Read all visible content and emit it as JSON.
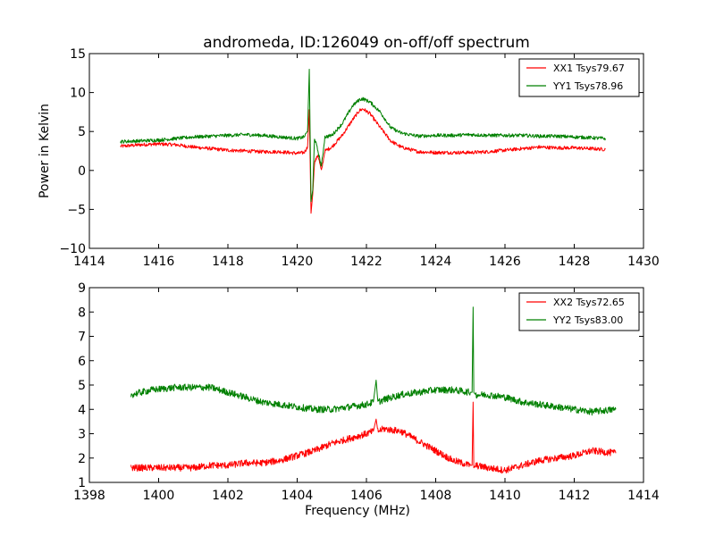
{
  "figure_title": "andromeda, ID:126049 on-off/off spectrum",
  "chart_data": [
    {
      "type": "line",
      "title": "andromeda, ID:126049 on-off/off spectrum",
      "xlabel": "",
      "ylabel": "Power in Kelvin",
      "xlim": [
        1414,
        1430
      ],
      "ylim": [
        -10,
        15
      ],
      "xticks": [
        1414,
        1416,
        1418,
        1420,
        1422,
        1424,
        1426,
        1428,
        1430
      ],
      "yticks": [
        -10,
        -5,
        0,
        5,
        10,
        15
      ],
      "ytick_labels": [
        "−10",
        "−5",
        "0",
        "5",
        "10",
        "15"
      ],
      "grid": false,
      "legend_position": "top-right",
      "series": [
        {
          "name": "XX1 Tsys79.67",
          "color": "#ff0000",
          "x": [
            1414.9,
            1415.5,
            1416.0,
            1416.5,
            1417.0,
            1417.5,
            1418.0,
            1418.5,
            1419.0,
            1419.5,
            1420.0,
            1420.2,
            1420.3,
            1420.35,
            1420.4,
            1420.45,
            1420.5,
            1420.6,
            1420.7,
            1420.8,
            1421.0,
            1421.3,
            1421.6,
            1421.8,
            1421.9,
            1422.1,
            1422.4,
            1422.7,
            1423.0,
            1423.5,
            1424.0,
            1424.5,
            1425.0,
            1425.5,
            1426.0,
            1426.5,
            1427.0,
            1427.5,
            1428.0,
            1428.5,
            1428.9
          ],
          "y": [
            3.1,
            3.3,
            3.4,
            3.3,
            3.0,
            2.8,
            2.6,
            2.5,
            2.4,
            2.4,
            2.2,
            2.3,
            3.0,
            7.8,
            -5.5,
            -3.0,
            1.0,
            2.0,
            -0.1,
            2.5,
            3.0,
            4.5,
            6.5,
            7.7,
            7.9,
            7.3,
            5.5,
            3.8,
            3.0,
            2.4,
            2.3,
            2.3,
            2.3,
            2.4,
            2.6,
            2.8,
            3.0,
            2.9,
            2.9,
            2.8,
            2.7
          ]
        },
        {
          "name": "YY1 Tsys78.96",
          "color": "#008000",
          "x": [
            1414.9,
            1415.5,
            1416.0,
            1416.5,
            1417.0,
            1417.5,
            1418.0,
            1418.5,
            1419.0,
            1419.5,
            1420.0,
            1420.2,
            1420.3,
            1420.35,
            1420.4,
            1420.45,
            1420.5,
            1420.6,
            1420.7,
            1420.8,
            1421.0,
            1421.3,
            1421.6,
            1421.8,
            1421.9,
            1422.1,
            1422.4,
            1422.7,
            1423.0,
            1423.5,
            1424.0,
            1424.5,
            1425.0,
            1425.5,
            1426.0,
            1426.5,
            1427.0,
            1427.5,
            1428.0,
            1428.5,
            1428.9
          ],
          "y": [
            3.7,
            3.8,
            3.9,
            4.1,
            4.3,
            4.4,
            4.5,
            4.6,
            4.5,
            4.3,
            4.1,
            4.3,
            5.0,
            13.0,
            -4.0,
            -2.5,
            4.2,
            2.5,
            0.5,
            4.3,
            4.5,
            6.0,
            8.3,
            9.1,
            9.2,
            8.8,
            7.5,
            5.5,
            4.8,
            4.4,
            4.5,
            4.5,
            4.6,
            4.5,
            4.5,
            4.5,
            4.4,
            4.4,
            4.3,
            4.2,
            4.1
          ]
        }
      ]
    },
    {
      "type": "line",
      "title": "",
      "xlabel": "Frequency (MHz)",
      "ylabel": "",
      "xlim": [
        1398,
        1414
      ],
      "ylim": [
        1,
        9
      ],
      "xticks": [
        1398,
        1400,
        1402,
        1404,
        1406,
        1408,
        1410,
        1412,
        1414
      ],
      "yticks": [
        1,
        2,
        3,
        4,
        5,
        6,
        7,
        8,
        9
      ],
      "ytick_labels": [
        "1",
        "2",
        "3",
        "4",
        "5",
        "6",
        "7",
        "8",
        "9"
      ],
      "grid": false,
      "legend_position": "top-right",
      "series": [
        {
          "name": "XX2 Tsys72.65",
          "color": "#ff0000",
          "x": [
            1399.2,
            1399.8,
            1400.5,
            1401.0,
            1401.5,
            1402.0,
            1402.5,
            1403.0,
            1403.5,
            1404.0,
            1404.5,
            1405.0,
            1405.5,
            1406.0,
            1406.2,
            1406.28,
            1406.33,
            1406.5,
            1407.0,
            1407.5,
            1408.0,
            1408.5,
            1409.0,
            1409.05,
            1409.08,
            1409.1,
            1409.15,
            1409.5,
            1410.0,
            1410.5,
            1411.0,
            1411.5,
            1412.0,
            1412.5,
            1413.2
          ],
          "y": [
            1.6,
            1.6,
            1.6,
            1.6,
            1.7,
            1.7,
            1.8,
            1.8,
            1.9,
            2.1,
            2.3,
            2.6,
            2.8,
            3.0,
            3.1,
            3.6,
            3.1,
            3.2,
            3.1,
            2.7,
            2.3,
            1.9,
            1.7,
            1.7,
            4.3,
            1.6,
            1.7,
            1.6,
            1.5,
            1.7,
            1.9,
            2.0,
            2.1,
            2.3,
            2.2
          ]
        },
        {
          "name": "YY2 Tsys83.00",
          "color": "#008000",
          "x": [
            1399.2,
            1399.8,
            1400.5,
            1401.0,
            1401.5,
            1402.0,
            1402.5,
            1403.0,
            1403.5,
            1404.0,
            1404.5,
            1405.0,
            1405.5,
            1406.0,
            1406.2,
            1406.28,
            1406.33,
            1406.5,
            1407.0,
            1407.5,
            1408.0,
            1408.5,
            1409.0,
            1409.05,
            1409.08,
            1409.1,
            1409.15,
            1409.5,
            1410.0,
            1410.5,
            1411.0,
            1411.5,
            1412.0,
            1412.5,
            1413.2
          ],
          "y": [
            4.6,
            4.8,
            4.9,
            4.9,
            4.9,
            4.7,
            4.5,
            4.3,
            4.2,
            4.1,
            4.0,
            4.0,
            4.1,
            4.2,
            4.3,
            5.2,
            4.3,
            4.4,
            4.6,
            4.7,
            4.8,
            4.8,
            4.7,
            4.7,
            8.2,
            4.7,
            4.6,
            4.6,
            4.5,
            4.3,
            4.2,
            4.1,
            4.0,
            3.9,
            4.0
          ]
        }
      ]
    }
  ]
}
